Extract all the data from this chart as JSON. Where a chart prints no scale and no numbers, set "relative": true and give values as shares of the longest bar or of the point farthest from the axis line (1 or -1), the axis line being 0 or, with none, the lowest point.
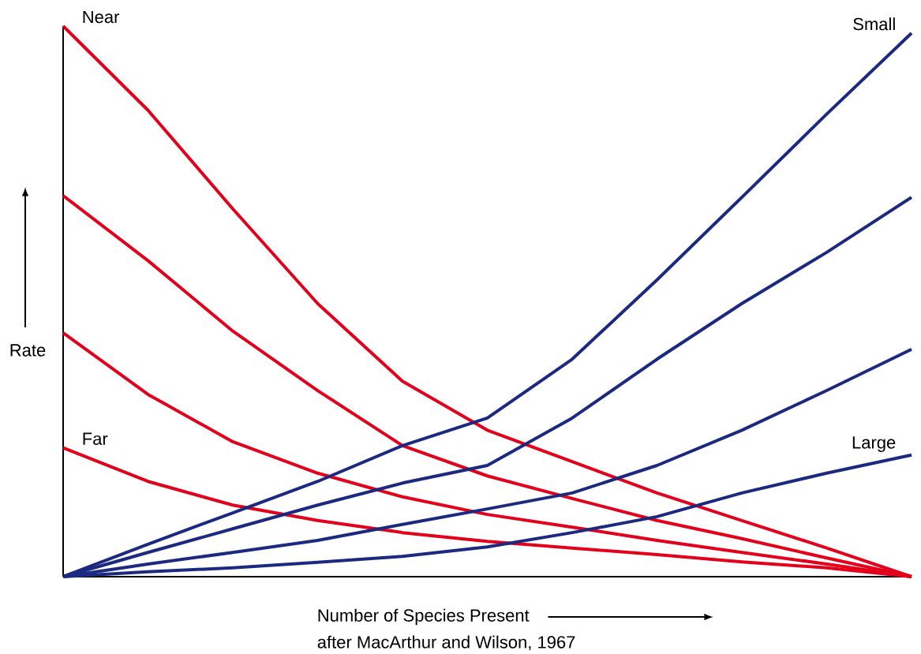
{
  "chart_data": {
    "type": "line",
    "relative": true,
    "xlabel": "Number of Species Present",
    "ylabel": "Rate",
    "annotations": [
      "after MacArthur and Wilson, 1967"
    ],
    "categories": [
      null,
      null,
      null,
      null,
      null,
      null,
      null,
      null,
      null,
      null,
      null
    ],
    "series": [
      {
        "name": "Near",
        "color": "#e2001a",
        "values": [
          1.0,
          0.847,
          0.668,
          0.496,
          0.355,
          0.266,
          0.209,
          0.152,
          0.102,
          0.052,
          0
        ]
      },
      {
        "color": "#e2001a",
        "values": [
          0.692,
          0.574,
          0.446,
          0.338,
          0.238,
          0.183,
          0.142,
          0.102,
          0.069,
          0.034,
          0
        ]
      },
      {
        "color": "#e2001a",
        "values": [
          0.443,
          0.331,
          0.245,
          0.188,
          0.145,
          0.113,
          0.09,
          0.066,
          0.044,
          0.023,
          0
        ]
      },
      {
        "name": "Far",
        "color": "#e2001a",
        "values": [
          0.234,
          0.173,
          0.13,
          0.102,
          0.08,
          0.064,
          0.052,
          0.04,
          0.027,
          0.016,
          0
        ]
      },
      {
        "name": "Small",
        "color": "#1b2a80",
        "values": [
          0,
          0.059,
          0.116,
          0.173,
          0.238,
          0.288,
          0.395,
          0.539,
          0.689,
          0.84,
          0.987
        ]
      },
      {
        "color": "#1b2a80",
        "values": [
          0,
          0.044,
          0.087,
          0.13,
          0.17,
          0.202,
          0.288,
          0.395,
          0.496,
          0.589,
          0.689
        ]
      },
      {
        "color": "#1b2a80",
        "values": [
          0,
          0.023,
          0.044,
          0.066,
          0.095,
          0.123,
          0.152,
          0.202,
          0.266,
          0.338,
          0.413
        ]
      },
      {
        "name": "Large",
        "color": "#1b2a80",
        "values": [
          0,
          0.009,
          0.016,
          0.026,
          0.037,
          0.054,
          0.08,
          0.109,
          0.152,
          0.188,
          0.221
        ]
      }
    ],
    "line_style": "solid"
  }
}
